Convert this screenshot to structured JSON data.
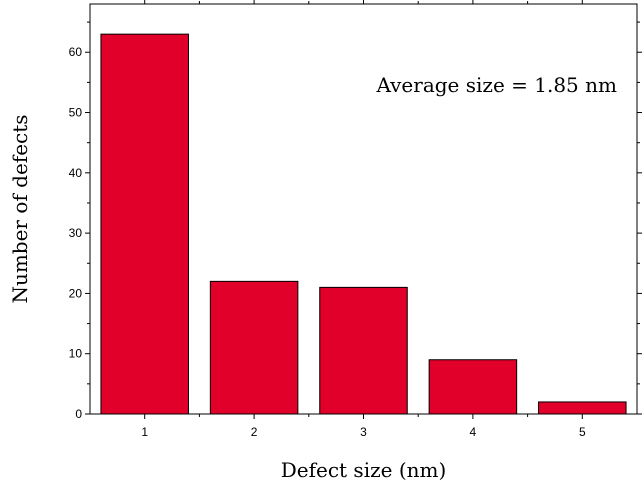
{
  "chart_data": {
    "type": "bar",
    "title": "",
    "categories": [
      "1",
      "2",
      "3",
      "4",
      "5"
    ],
    "values": [
      63,
      22,
      21,
      9,
      2
    ],
    "xlabel": "Defect size (nm)",
    "ylabel": "Number of defects",
    "ylim": [
      0,
      68
    ],
    "yticks": [
      0,
      10,
      20,
      30,
      40,
      50,
      60
    ],
    "annotation": "Average size = 1.85 nm",
    "bar_color": "#e0002a",
    "grid": false,
    "legend": "none"
  }
}
